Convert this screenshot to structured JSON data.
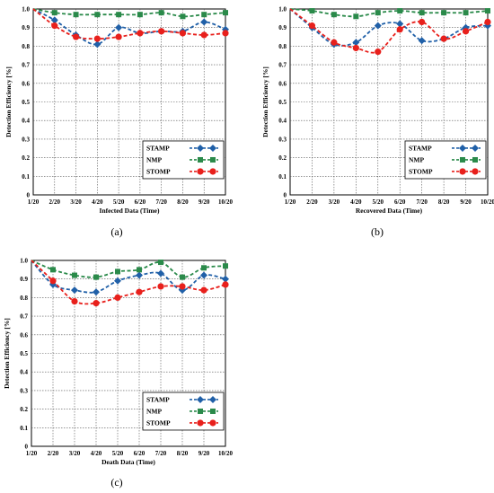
{
  "chart_data": [
    {
      "type": "line",
      "panel_label": "(a)",
      "xlabel": "Infected Data (Time)",
      "ylabel": "Detection Efficiency [%]",
      "categories": [
        "1/20",
        "2/20",
        "3/20",
        "4/20",
        "5/20",
        "6/20",
        "7/20",
        "8/20",
        "9/20",
        "10/20"
      ],
      "ylim": [
        0,
        1.0
      ],
      "yticks": [
        "0",
        "0.1",
        "0.2",
        "0.3",
        "0.4",
        "0.5",
        "0.6",
        "0.7",
        "0.8",
        "0.9",
        "1.0"
      ],
      "grid": true,
      "legend_position": "bottom-right",
      "series": [
        {
          "name": "STAMP",
          "color": "#2060a8",
          "marker": "diamond",
          "values": [
            1.0,
            0.94,
            0.86,
            0.81,
            0.9,
            0.87,
            0.88,
            0.88,
            0.93,
            0.89
          ]
        },
        {
          "name": "NMP",
          "color": "#2a8a4a",
          "marker": "square",
          "values": [
            1.0,
            0.98,
            0.97,
            0.97,
            0.97,
            0.97,
            0.98,
            0.96,
            0.97,
            0.98
          ]
        },
        {
          "name": "STOMP",
          "color": "#e8201c",
          "marker": "circle",
          "values": [
            1.0,
            0.91,
            0.85,
            0.84,
            0.85,
            0.87,
            0.88,
            0.87,
            0.86,
            0.87
          ]
        }
      ]
    },
    {
      "type": "line",
      "panel_label": "(b)",
      "xlabel": "Recovered Data (Time)",
      "ylabel": "Detection Efficiency [%]",
      "categories": [
        "1/20",
        "2/20",
        "3/20",
        "4/20",
        "5/20",
        "6/20",
        "7/20",
        "8/20",
        "9/20",
        "10/20"
      ],
      "ylim": [
        0,
        1.0
      ],
      "yticks": [
        "0",
        "0.1",
        "0.2",
        "0.3",
        "0.4",
        "0.5",
        "0.6",
        "0.7",
        "0.8",
        "0.9",
        "1.0"
      ],
      "grid": true,
      "legend_position": "bottom-right",
      "series": [
        {
          "name": "STAMP",
          "color": "#2060a8",
          "marker": "diamond",
          "values": [
            1.0,
            0.9,
            0.81,
            0.82,
            0.91,
            0.92,
            0.83,
            0.84,
            0.9,
            0.91
          ]
        },
        {
          "name": "NMP",
          "color": "#2a8a4a",
          "marker": "square",
          "values": [
            1.0,
            0.99,
            0.97,
            0.96,
            0.98,
            0.99,
            0.98,
            0.98,
            0.98,
            0.99
          ]
        },
        {
          "name": "STOMP",
          "color": "#e8201c",
          "marker": "circle",
          "values": [
            1.0,
            0.91,
            0.82,
            0.79,
            0.77,
            0.89,
            0.93,
            0.84,
            0.88,
            0.93
          ]
        }
      ]
    },
    {
      "type": "line",
      "panel_label": "(c)",
      "xlabel": "Death Data (Time)",
      "ylabel": "Detection Efficiency [%]",
      "categories": [
        "1/20",
        "2/20",
        "3/20",
        "4/20",
        "5/20",
        "6/20",
        "7/20",
        "8/20",
        "9/20",
        "10/20"
      ],
      "ylim": [
        0,
        1.0
      ],
      "yticks": [
        "0",
        "0.1",
        "0.2",
        "0.3",
        "0.4",
        "0.5",
        "0.6",
        "0.7",
        "0.8",
        "0.9",
        "1.0"
      ],
      "grid": true,
      "legend_position": "bottom-right",
      "series": [
        {
          "name": "STAMP",
          "color": "#2060a8",
          "marker": "diamond",
          "values": [
            1.0,
            0.87,
            0.84,
            0.83,
            0.89,
            0.92,
            0.93,
            0.84,
            0.92,
            0.9
          ]
        },
        {
          "name": "NMP",
          "color": "#2a8a4a",
          "marker": "square",
          "values": [
            1.0,
            0.95,
            0.92,
            0.91,
            0.94,
            0.95,
            0.99,
            0.91,
            0.96,
            0.97
          ]
        },
        {
          "name": "STOMP",
          "color": "#e8201c",
          "marker": "circle",
          "values": [
            1.0,
            0.89,
            0.78,
            0.77,
            0.8,
            0.83,
            0.86,
            0.86,
            0.84,
            0.87
          ]
        }
      ]
    }
  ]
}
